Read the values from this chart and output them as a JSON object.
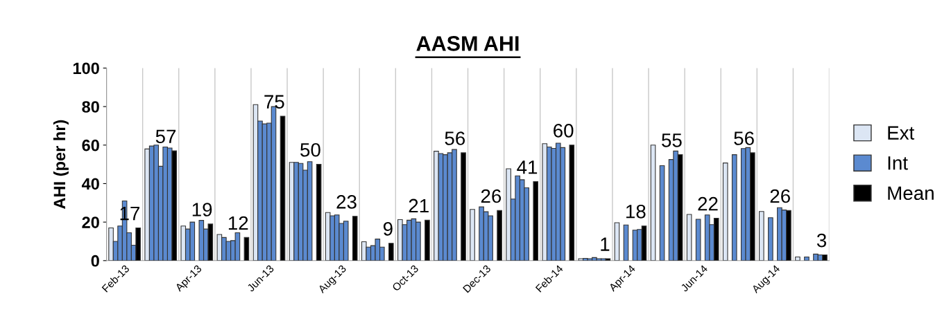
{
  "chart_data": {
    "type": "bar",
    "title": "AASM AHI",
    "ylabel": "AHI (per hr)",
    "categories": [
      "Feb-13",
      null,
      "Apr-13",
      null,
      "Jun-13",
      null,
      "Aug-13",
      null,
      "Oct-13",
      null,
      "Dec-13",
      null,
      "Feb-14",
      null,
      "Apr-14",
      null,
      "Jun-14",
      null,
      "Aug-14",
      null
    ],
    "series": [
      {
        "name": "Ext",
        "color": "#dce6f4",
        "values": [
          17,
          58,
          18,
          13.6,
          81,
          51,
          25,
          9.8,
          21.3,
          56.8,
          26.6,
          47.7,
          60.7,
          1,
          19.7,
          60,
          24,
          50.7,
          25.5,
          1.9
        ]
      },
      {
        "name": "Int",
        "color": "#5b8ad0",
        "values": [
          10,
          59.5,
          16.4,
          12,
          72.5,
          51,
          23.3,
          7,
          18.7,
          55.6,
          null,
          32,
          59,
          1.2,
          null,
          null,
          null,
          null,
          null,
          null
        ]
      },
      {
        "color": "#5b8ad0",
        "values": [
          18,
          60,
          20,
          10,
          71,
          50.5,
          23.7,
          7.8,
          21,
          55,
          27.9,
          44,
          58.3,
          1,
          18.5,
          49.3,
          21.5,
          55,
          22.3,
          1.9
        ]
      },
      {
        "color": "#5b8ad0",
        "values": [
          31,
          49,
          null,
          10.4,
          71.4,
          47,
          19.3,
          11.2,
          21.7,
          56,
          25.4,
          42,
          61,
          1.6,
          null,
          null,
          null,
          null,
          null,
          null
        ]
      },
      {
        "color": "#5b8ad0",
        "values": [
          14.5,
          59,
          20.9,
          14.5,
          80,
          51.4,
          20.5,
          7,
          20,
          57.7,
          23.3,
          37.8,
          58.7,
          1,
          15.8,
          52.5,
          23.7,
          58.2,
          27.5,
          3.4
        ]
      },
      {
        "color": "#5b8ad0",
        "values": [
          8,
          58.5,
          16.4,
          null,
          null,
          null,
          null,
          null,
          null,
          null,
          null,
          null,
          null,
          1,
          16.2,
          56.9,
          18.7,
          58.7,
          26.3,
          3
        ]
      },
      {
        "name": "Mean",
        "color": "#000000",
        "values": [
          17,
          57,
          19,
          12,
          75,
          50,
          23,
          9,
          21,
          56,
          26,
          41,
          60,
          1,
          18,
          55,
          22,
          56,
          26,
          3
        ],
        "value_labels": [
          "17",
          "57",
          "19",
          "12",
          "75",
          "50",
          "23",
          "9",
          "21",
          "56",
          "26",
          "41",
          "60",
          "1",
          "18",
          "55",
          "22",
          "56",
          "26",
          "3"
        ]
      }
    ],
    "ylim": [
      0,
      100
    ],
    "yticks": [
      0,
      20,
      40,
      60,
      80,
      100
    ],
    "grid": "x",
    "legend": "right"
  }
}
